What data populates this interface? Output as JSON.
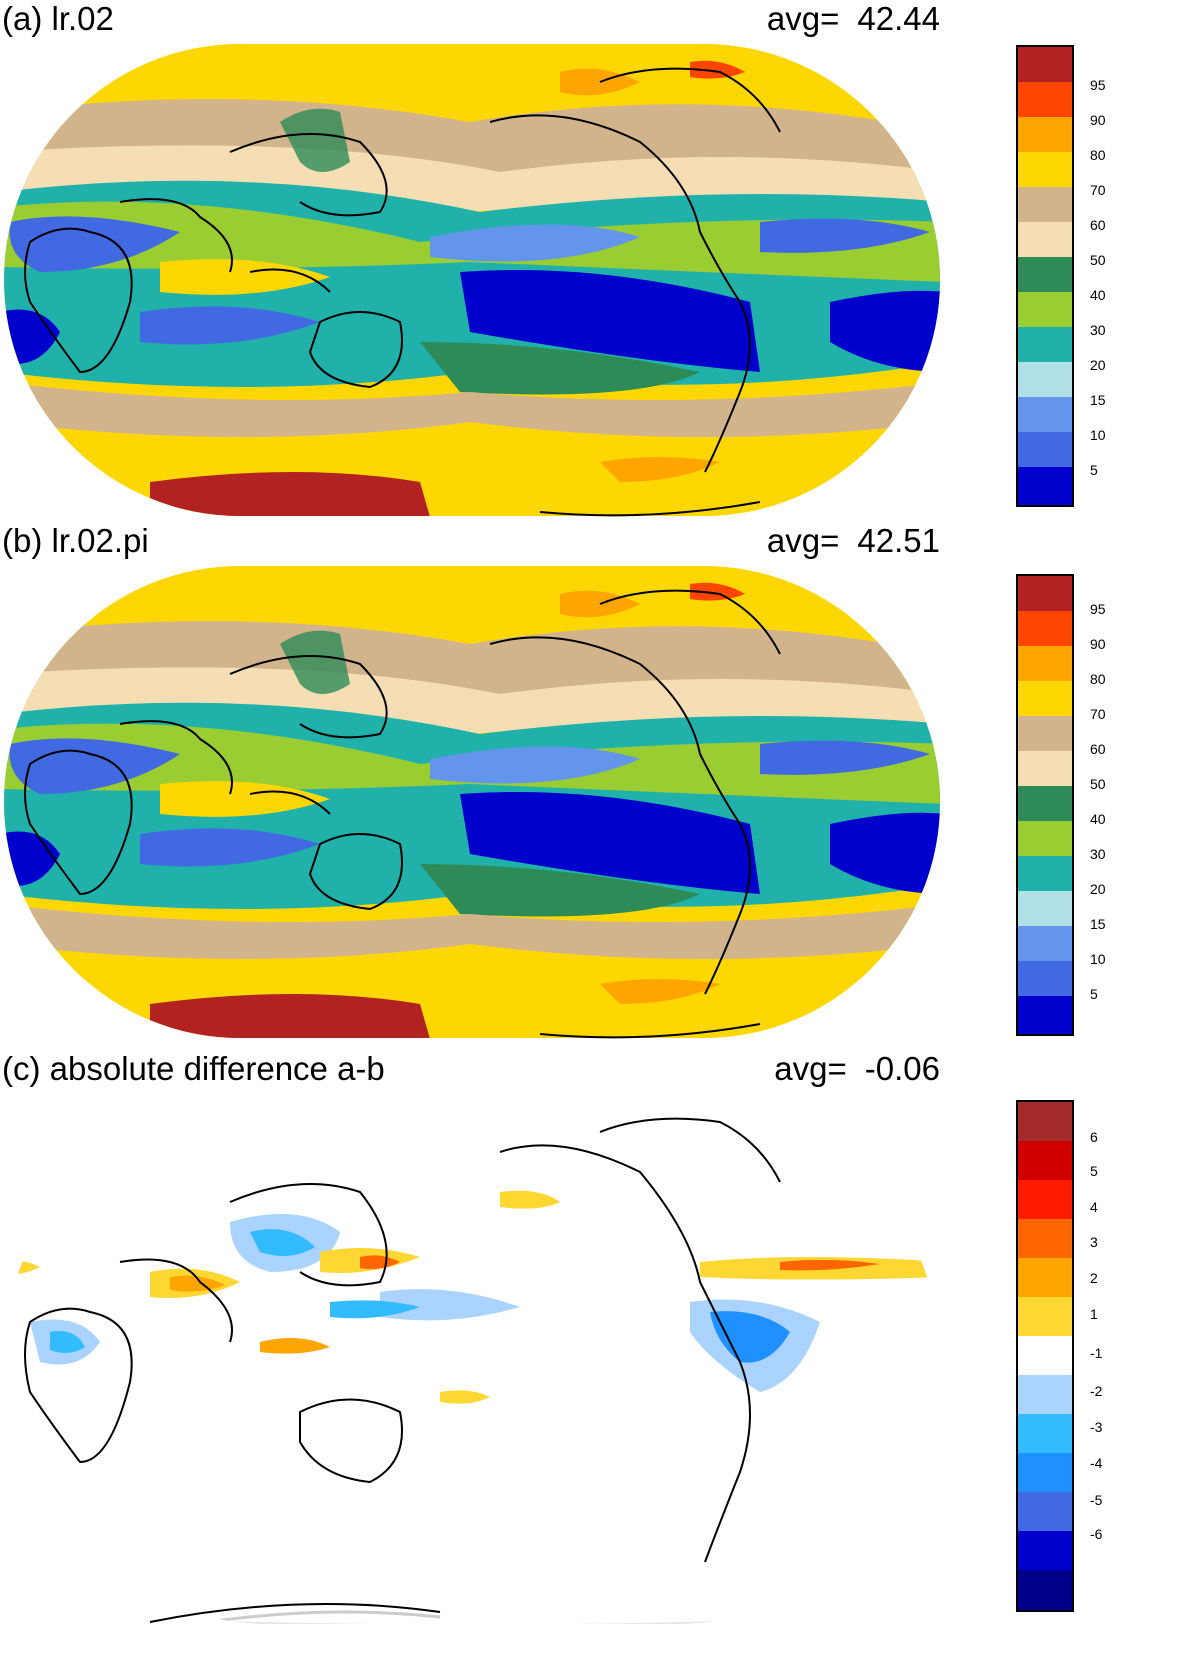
{
  "panels": [
    {
      "id": "a",
      "title": "(a) lr.02",
      "avg_label": "avg=",
      "avg_value": "42.44",
      "colorbar": {
        "labels": [
          "95",
          "90",
          "80",
          "70",
          "60",
          "50",
          "40",
          "30",
          "20",
          "15",
          "10",
          "5"
        ],
        "colors": [
          "#b22222",
          "#ff4500",
          "#ffa500",
          "#ffd700",
          "#d2b48c",
          "#f5deb3",
          "#2e8b57",
          "#9acd32",
          "#20b2aa",
          "#b0e0e6",
          "#6495ed",
          "#4169e1",
          "#0000cd"
        ]
      }
    },
    {
      "id": "b",
      "title": "(b) lr.02.pi",
      "avg_label": "avg=",
      "avg_value": "42.51",
      "colorbar": {
        "labels": [
          "95",
          "90",
          "80",
          "70",
          "60",
          "50",
          "40",
          "30",
          "20",
          "15",
          "10",
          "5"
        ],
        "colors": [
          "#b22222",
          "#ff4500",
          "#ffa500",
          "#ffd700",
          "#d2b48c",
          "#f5deb3",
          "#2e8b57",
          "#9acd32",
          "#20b2aa",
          "#b0e0e6",
          "#6495ed",
          "#4169e1",
          "#0000cd"
        ]
      }
    },
    {
      "id": "c",
      "title": "(c) absolute difference a-b",
      "avg_label": "avg=",
      "avg_value": "-0.06",
      "colorbar": {
        "labels": [
          "6",
          "5",
          "4",
          "3",
          "2",
          "1",
          "-1",
          "-2",
          "-3",
          "-4",
          "-5",
          "-6"
        ],
        "colors": [
          "#a52a2a",
          "#d00000",
          "#ff1a00",
          "#ff6600",
          "#ffa500",
          "#ffd733",
          "#ffffff",
          "#aad4ff",
          "#33bbff",
          "#1e90ff",
          "#4169e1",
          "#0000cd",
          "#00008b"
        ]
      }
    }
  ]
}
